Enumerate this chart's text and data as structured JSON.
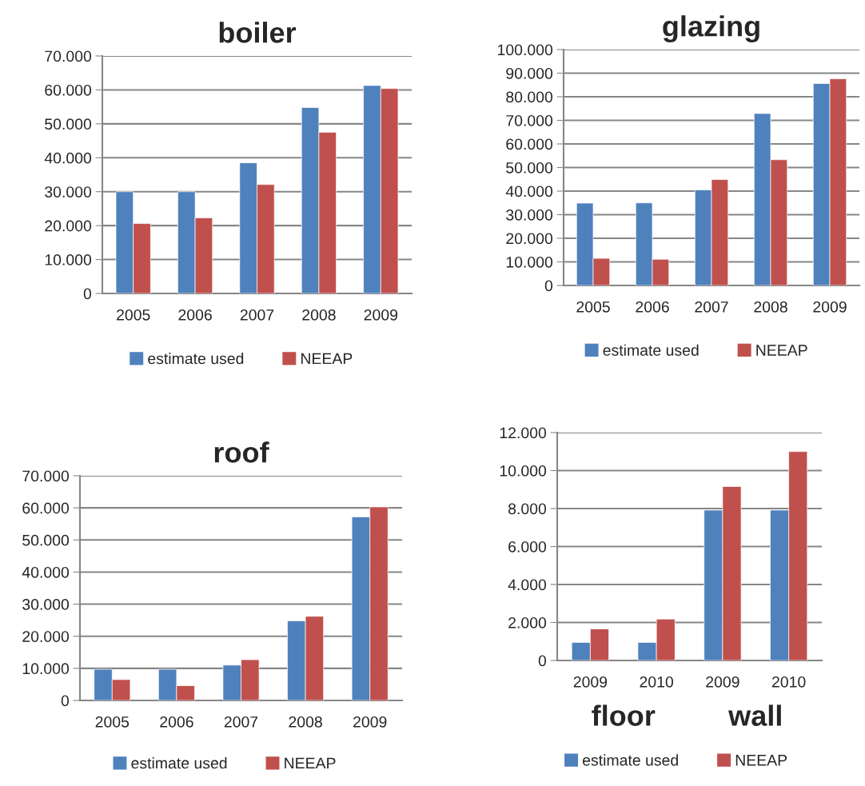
{
  "chart_data": [
    {
      "type": "bar",
      "title": "boiler",
      "categories": [
        "2005",
        "2006",
        "2007",
        "2008",
        "2009"
      ],
      "series": [
        {
          "name": "estimate used",
          "color": "#4f81bd",
          "values": [
            30000,
            30000,
            38500,
            54800,
            61300
          ]
        },
        {
          "name": "NEEAP",
          "color": "#c0504d",
          "values": [
            20600,
            22300,
            32100,
            47500,
            60400
          ]
        }
      ],
      "ylim": [
        0,
        70000
      ],
      "yticks": [
        {
          "value": 0,
          "label": "0"
        },
        {
          "value": 10000,
          "label": "10.000"
        },
        {
          "value": 20000,
          "label": "20.000"
        },
        {
          "value": 30000,
          "label": "30.000"
        },
        {
          "value": 40000,
          "label": "40.000"
        },
        {
          "value": 50000,
          "label": "50.000"
        },
        {
          "value": 60000,
          "label": "60.000"
        },
        {
          "value": 70000,
          "label": "70.000"
        }
      ],
      "grid": "y",
      "legend": "bottom"
    },
    {
      "type": "bar",
      "title": "glazing",
      "categories": [
        "2005",
        "2006",
        "2007",
        "2008",
        "2009"
      ],
      "series": [
        {
          "name": "estimate used",
          "color": "#4f81bd",
          "values": [
            34900,
            35000,
            40500,
            72900,
            85600
          ]
        },
        {
          "name": "NEEAP",
          "color": "#c0504d",
          "values": [
            11500,
            11100,
            44900,
            53300,
            87600
          ]
        }
      ],
      "ylim": [
        0,
        100000
      ],
      "yticks": [
        {
          "value": 0,
          "label": "0"
        },
        {
          "value": 10000,
          "label": "10.000"
        },
        {
          "value": 20000,
          "label": "20.000"
        },
        {
          "value": 30000,
          "label": "30.000"
        },
        {
          "value": 40000,
          "label": "40.000"
        },
        {
          "value": 50000,
          "label": "50.000"
        },
        {
          "value": 60000,
          "label": "60.000"
        },
        {
          "value": 70000,
          "label": "70.000"
        },
        {
          "value": 80000,
          "label": "80.000"
        },
        {
          "value": 90000,
          "label": "90.000"
        },
        {
          "value": 100000,
          "label": "100.000"
        }
      ],
      "grid": "y",
      "legend": "bottom"
    },
    {
      "type": "bar",
      "title": "roof",
      "categories": [
        "2005",
        "2006",
        "2007",
        "2008",
        "2009"
      ],
      "series": [
        {
          "name": "estimate used",
          "color": "#4f81bd",
          "values": [
            9700,
            9700,
            11000,
            24800,
            57200
          ]
        },
        {
          "name": "NEEAP",
          "color": "#c0504d",
          "values": [
            6500,
            4600,
            12700,
            26200,
            60300
          ]
        }
      ],
      "ylim": [
        0,
        70000
      ],
      "yticks": [
        {
          "value": 0,
          "label": "0"
        },
        {
          "value": 10000,
          "label": "10.000"
        },
        {
          "value": 20000,
          "label": "20.000"
        },
        {
          "value": 30000,
          "label": "30.000"
        },
        {
          "value": 40000,
          "label": "40.000"
        },
        {
          "value": 50000,
          "label": "50.000"
        },
        {
          "value": 60000,
          "label": "60.000"
        },
        {
          "value": 70000,
          "label": "70.000"
        }
      ],
      "grid": "y",
      "legend": "bottom"
    },
    {
      "type": "bar",
      "categories": [
        "2009",
        "2010",
        "2009",
        "2010"
      ],
      "series": [
        {
          "name": "estimate used",
          "color": "#4f81bd",
          "values": [
            950,
            950,
            7920,
            7920
          ]
        },
        {
          "name": "NEEAP",
          "color": "#c0504d",
          "values": [
            1660,
            2180,
            9160,
            11000
          ]
        }
      ],
      "ylim": [
        0,
        12000
      ],
      "yticks": [
        {
          "value": 0,
          "label": "0"
        },
        {
          "value": 2000,
          "label": "2.000"
        },
        {
          "value": 4000,
          "label": "4.000"
        },
        {
          "value": 6000,
          "label": "6.000"
        },
        {
          "value": 8000,
          "label": "8.000"
        },
        {
          "value": 10000,
          "label": "10.000"
        },
        {
          "value": 12000,
          "label": "12.000"
        }
      ],
      "annotations": [
        "floor",
        "wall"
      ],
      "grid": "y",
      "legend": "bottom"
    }
  ]
}
